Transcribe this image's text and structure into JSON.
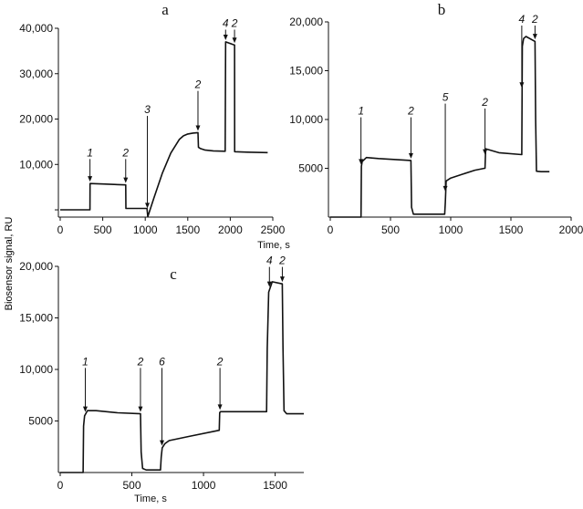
{
  "chart_data": [
    {
      "type": "line",
      "panel_label": "a",
      "xlabel": "Time, s",
      "xlim": [
        0,
        2500
      ],
      "ylim": [
        -1600,
        40000
      ],
      "xticks": [
        0,
        500,
        1000,
        1500,
        2000,
        2500
      ],
      "xtick_labels": [
        "0",
        "500",
        "1000",
        "1500",
        "2000",
        "2500"
      ],
      "yticks": [
        40000,
        30000,
        20000,
        10000
      ],
      "ytick_labels": [
        "40,000",
        "30,000",
        "20,000",
        "10,000"
      ],
      "extra_ytick": [
        0
      ],
      "series": [
        {
          "x": [
            0,
            350,
            351,
            500,
            770,
            772,
            1020,
            1030,
            1100,
            1200,
            1300,
            1400,
            1450,
            1500,
            1560,
            1620,
            1625,
            1650,
            1700,
            1800,
            1940,
            1945,
            2050,
            2052,
            2200,
            2440
          ],
          "y": [
            0,
            0,
            5800,
            5700,
            5500,
            300,
            300,
            -1500,
            2500,
            8000,
            12500,
            15500,
            16300,
            16700,
            16900,
            17000,
            13800,
            13500,
            13200,
            13000,
            12900,
            37000,
            36300,
            12800,
            12700,
            12600
          ]
        }
      ],
      "annotations": [
        {
          "label": "1",
          "x": 350,
          "label_y": 12000
        },
        {
          "label": "2",
          "x": 770,
          "label_y": 12000
        },
        {
          "label": "3",
          "x": 1025,
          "label_y": 21500
        },
        {
          "label": "2",
          "x": 1620,
          "label_y": 27000
        },
        {
          "label": "4",
          "x": 1945,
          "label_y": 40500
        },
        {
          "label": "2",
          "x": 2050,
          "label_y": 40500
        }
      ]
    },
    {
      "type": "line",
      "panel_label": "b",
      "xlabel": "Time, s",
      "xlim": [
        0,
        2000
      ],
      "ylim": [
        0,
        20000
      ],
      "xticks": [
        0,
        500,
        1000,
        1500,
        2000
      ],
      "xtick_labels": [
        "0",
        "500",
        "1000",
        "1500",
        "2000"
      ],
      "yticks": [
        20000,
        15000,
        10000,
        5000
      ],
      "ytick_labels": [
        "20,000",
        "15,000",
        "10,000",
        "5000"
      ],
      "series": [
        {
          "x": [
            0,
            255,
            258,
            265,
            300,
            400,
            670,
            675,
            690,
            950,
            955,
            962,
            1000,
            1100,
            1200,
            1280,
            1285,
            1290,
            1400,
            1590,
            1595,
            1605,
            1625,
            1700,
            1705,
            1712,
            1750,
            1820
          ],
          "y": [
            0,
            0,
            5200,
            5700,
            6100,
            6000,
            5800,
            1000,
            300,
            300,
            1500,
            3700,
            4000,
            4400,
            4800,
            5000,
            5000,
            7000,
            6600,
            6400,
            17500,
            18300,
            18500,
            18000,
            10000,
            4700,
            4650,
            4650
          ]
        }
      ],
      "annotations": [
        {
          "label": "1",
          "x": 255,
          "label_y": 10600
        },
        {
          "label": "2",
          "x": 670,
          "label_y": 10600
        },
        {
          "label": "5",
          "x": 955,
          "label_y": 12000
        },
        {
          "label": "2",
          "x": 1285,
          "label_y": 11500
        },
        {
          "label": "4",
          "x": 1590,
          "label_y": 20000
        },
        {
          "label": "2",
          "x": 1700,
          "label_y": 20000
        }
      ]
    },
    {
      "type": "line",
      "panel_label": "c",
      "xlabel": "Time, s",
      "ylabel": "Biosensor signal, RU",
      "xlim": [
        0,
        1700
      ],
      "ylim": [
        0,
        20000
      ],
      "xticks": [
        0,
        500,
        1000,
        1500
      ],
      "xtick_labels": [
        "0",
        "500",
        "1000",
        "1500"
      ],
      "yticks": [
        20000,
        15000,
        10000,
        5000
      ],
      "ytick_labels": [
        "20,000",
        "15,000",
        "10,000",
        "5000"
      ],
      "series": [
        {
          "x": [
            0,
            160,
            163,
            170,
            190,
            250,
            400,
            560,
            565,
            575,
            600,
            700,
            705,
            712,
            730,
            760,
            900,
            1110,
            1113,
            1118,
            1440,
            1445,
            1455,
            1480,
            1550,
            1555,
            1562,
            1580,
            1700
          ],
          "y": [
            0,
            0,
            4500,
            5500,
            6000,
            6000,
            5800,
            5700,
            2000,
            400,
            250,
            250,
            1500,
            2400,
            2800,
            3100,
            3500,
            4100,
            5800,
            5900,
            5900,
            12000,
            17500,
            18500,
            18300,
            12000,
            6000,
            5700,
            5700
          ]
        }
      ],
      "annotations": [
        {
          "label": "1",
          "x": 175,
          "label_y": 10500
        },
        {
          "label": "2",
          "x": 560,
          "label_y": 10500
        },
        {
          "label": "6",
          "x": 710,
          "label_y": 10500
        },
        {
          "label": "2",
          "x": 1115,
          "label_y": 10500
        },
        {
          "label": "4",
          "x": 1460,
          "label_y": 20300
        },
        {
          "label": "2",
          "x": 1550,
          "label_y": 20300
        }
      ]
    }
  ]
}
